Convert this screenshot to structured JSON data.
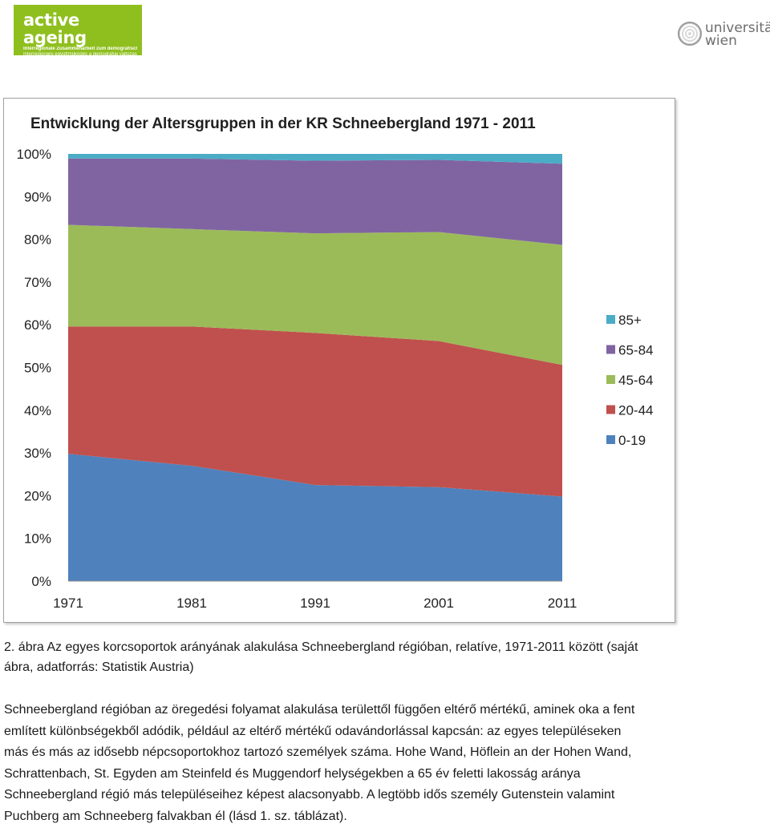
{
  "header": {
    "left_logo": {
      "brand": "active ageing",
      "line1": "Interregionale Zusammenarbeit zum demografischen Wandel",
      "line2": "Interregionális együttműködés a demográfiai változások jegyében",
      "color": "#8fbf1f"
    },
    "right_logo": {
      "word1": "universität",
      "word2": "wien"
    }
  },
  "figure": {
    "caption_lines": [
      "2. ábra Az egyes korcsoportok arányának alakulása Schneebergland régióban, relatíve, 1971-2011 között (saját",
      "ábra, adatforrás: Statistik Austria)"
    ]
  },
  "body": {
    "lines": [
      "Schneebergland régióban az öregedési folyamat alakulása területtől függően eltérő mértékű, aminek oka a fent",
      "említett különbségekből adódik, például az eltérő mértékű odavándorlással kapcsán: az egyes településeken",
      "más és más az idősebb népcsoportokhoz tartozó személyek száma. Hohe Wand, Höflein an der Hohen Wand,",
      "Schrattenbach, St. Egyden am Steinfeld és Muggendorf helységekben a 65 év feletti lakosság aránya",
      "Schneebergland régió más településeihez képest alacsonyabb. A legtöbb idős személy Gutenstein valamint",
      "Puchberg am Schneeberg falvakban él (lásd 1. sz. táblázat)."
    ]
  },
  "chart_data": {
    "type": "area",
    "stacked": "percent",
    "title": "Entwicklung der Altersgruppen in der KR Schneebergland 1971 - 2011",
    "x": [
      "1971",
      "1981",
      "1991",
      "2001",
      "2011"
    ],
    "y_ticks": [
      "0%",
      "10%",
      "20%",
      "30%",
      "40%",
      "50%",
      "60%",
      "70%",
      "80%",
      "90%",
      "100%"
    ],
    "ylim": [
      0,
      100
    ],
    "legend_position": "right",
    "series": [
      {
        "name": "0-19",
        "color": "#4f81bd",
        "values": [
          29.8,
          27.0,
          22.5,
          22.0,
          19.8
        ]
      },
      {
        "name": "20-44",
        "color": "#c0504d",
        "values": [
          29.8,
          32.6,
          35.6,
          34.2,
          30.8
        ]
      },
      {
        "name": "45-64",
        "color": "#9bbb59",
        "values": [
          23.8,
          22.8,
          23.3,
          25.5,
          28.1
        ]
      },
      {
        "name": "65-84",
        "color": "#8064a2",
        "values": [
          15.5,
          16.5,
          17.0,
          16.9,
          19.0
        ]
      },
      {
        "name": "85+",
        "color": "#4bacc6",
        "values": [
          1.1,
          1.1,
          1.6,
          1.4,
          2.3
        ]
      }
    ]
  }
}
